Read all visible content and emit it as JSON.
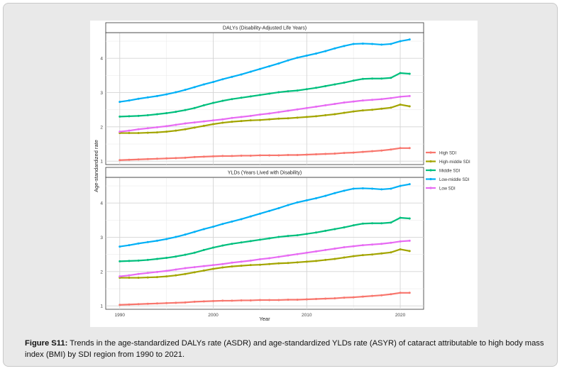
{
  "caption": {
    "label": "Figure S11:",
    "text": " Trends in the age-standardized DALYs rate (ASDR) and age-standardized YLDs rate (ASYR) of cataract attributable to high body mass index (BMI) by SDI region from 1990 to 2021."
  },
  "chart_data": {
    "type": "line",
    "xlabel": "Year",
    "ylabel": "Age-standardized rate",
    "xlim": [
      1988.5,
      2022.5
    ],
    "x_ticks": [
      1990,
      2000,
      2010,
      2020
    ],
    "y_ticks": [
      1,
      2,
      3,
      4
    ],
    "legend_position": "right",
    "series_meta": [
      {
        "name": "High SDI",
        "color": "#f8766d"
      },
      {
        "name": "High-middle SDI",
        "color": "#a3a500"
      },
      {
        "name": "Middle SDI",
        "color": "#00bf7d"
      },
      {
        "name": "Low-middle SDI",
        "color": "#00b0f6"
      },
      {
        "name": "Low SDI",
        "color": "#e76bf3"
      }
    ],
    "panels": [
      {
        "title": "DALYs (Disability-Adjusted Life Years)",
        "ylim": [
          0.9,
          4.75
        ],
        "x": [
          1990,
          1991,
          1992,
          1993,
          1994,
          1995,
          1996,
          1997,
          1998,
          1999,
          2000,
          2001,
          2002,
          2003,
          2004,
          2005,
          2006,
          2007,
          2008,
          2009,
          2010,
          2011,
          2012,
          2013,
          2014,
          2015,
          2016,
          2017,
          2018,
          2019,
          2020,
          2021
        ],
        "series": [
          {
            "name": "High SDI",
            "values": [
              1.03,
              1.04,
              1.05,
              1.06,
              1.07,
              1.08,
              1.09,
              1.1,
              1.12,
              1.13,
              1.14,
              1.15,
              1.15,
              1.16,
              1.16,
              1.17,
              1.17,
              1.17,
              1.18,
              1.18,
              1.19,
              1.2,
              1.21,
              1.22,
              1.24,
              1.25,
              1.27,
              1.29,
              1.31,
              1.34,
              1.38,
              1.38
            ]
          },
          {
            "name": "High-middle SDI",
            "values": [
              1.82,
              1.82,
              1.82,
              1.83,
              1.84,
              1.86,
              1.89,
              1.93,
              1.98,
              2.03,
              2.08,
              2.12,
              2.15,
              2.17,
              2.19,
              2.2,
              2.22,
              2.24,
              2.25,
              2.27,
              2.29,
              2.31,
              2.34,
              2.37,
              2.41,
              2.45,
              2.48,
              2.5,
              2.53,
              2.56,
              2.65,
              2.6
            ]
          },
          {
            "name": "Middle SDI",
            "values": [
              2.3,
              2.31,
              2.32,
              2.34,
              2.37,
              2.4,
              2.44,
              2.49,
              2.55,
              2.63,
              2.7,
              2.76,
              2.81,
              2.85,
              2.89,
              2.93,
              2.97,
              3.01,
              3.04,
              3.06,
              3.1,
              3.14,
              3.19,
              3.24,
              3.29,
              3.35,
              3.4,
              3.41,
              3.41,
              3.43,
              3.57,
              3.55
            ]
          },
          {
            "name": "Low-middle SDI",
            "values": [
              2.73,
              2.77,
              2.82,
              2.86,
              2.9,
              2.95,
              3.01,
              3.08,
              3.16,
              3.24,
              3.31,
              3.39,
              3.46,
              3.53,
              3.61,
              3.69,
              3.77,
              3.85,
              3.94,
              4.02,
              4.08,
              4.14,
              4.21,
              4.29,
              4.36,
              4.42,
              4.43,
              4.42,
              4.4,
              4.42,
              4.5,
              4.55
            ]
          },
          {
            "name": "Low SDI",
            "values": [
              1.86,
              1.89,
              1.93,
              1.96,
              1.99,
              2.02,
              2.06,
              2.1,
              2.13,
              2.16,
              2.19,
              2.22,
              2.26,
              2.29,
              2.32,
              2.36,
              2.39,
              2.43,
              2.47,
              2.51,
              2.55,
              2.59,
              2.63,
              2.67,
              2.71,
              2.74,
              2.77,
              2.79,
              2.81,
              2.84,
              2.88,
              2.9
            ]
          }
        ]
      },
      {
        "title": "YLDs (Years Lived with Disability)",
        "ylim": [
          0.9,
          4.75
        ],
        "x": [
          1990,
          1991,
          1992,
          1993,
          1994,
          1995,
          1996,
          1997,
          1998,
          1999,
          2000,
          2001,
          2002,
          2003,
          2004,
          2005,
          2006,
          2007,
          2008,
          2009,
          2010,
          2011,
          2012,
          2013,
          2014,
          2015,
          2016,
          2017,
          2018,
          2019,
          2020,
          2021
        ],
        "series": [
          {
            "name": "High SDI",
            "values": [
              1.03,
              1.04,
              1.05,
              1.06,
              1.07,
              1.08,
              1.09,
              1.1,
              1.12,
              1.13,
              1.14,
              1.15,
              1.15,
              1.16,
              1.16,
              1.17,
              1.17,
              1.17,
              1.18,
              1.18,
              1.19,
              1.2,
              1.21,
              1.22,
              1.24,
              1.25,
              1.27,
              1.29,
              1.31,
              1.34,
              1.38,
              1.38
            ]
          },
          {
            "name": "High-middle SDI",
            "values": [
              1.82,
              1.82,
              1.82,
              1.83,
              1.84,
              1.86,
              1.89,
              1.93,
              1.98,
              2.03,
              2.08,
              2.12,
              2.15,
              2.17,
              2.19,
              2.2,
              2.22,
              2.24,
              2.25,
              2.27,
              2.29,
              2.31,
              2.34,
              2.37,
              2.41,
              2.45,
              2.48,
              2.5,
              2.53,
              2.56,
              2.65,
              2.6
            ]
          },
          {
            "name": "Middle SDI",
            "values": [
              2.3,
              2.31,
              2.32,
              2.34,
              2.37,
              2.4,
              2.44,
              2.49,
              2.55,
              2.63,
              2.7,
              2.76,
              2.81,
              2.85,
              2.89,
              2.93,
              2.97,
              3.01,
              3.04,
              3.06,
              3.1,
              3.14,
              3.19,
              3.24,
              3.29,
              3.35,
              3.4,
              3.41,
              3.41,
              3.43,
              3.57,
              3.55
            ]
          },
          {
            "name": "Low-middle SDI",
            "values": [
              2.73,
              2.77,
              2.82,
              2.86,
              2.9,
              2.95,
              3.01,
              3.08,
              3.16,
              3.24,
              3.31,
              3.39,
              3.46,
              3.53,
              3.61,
              3.69,
              3.77,
              3.85,
              3.94,
              4.02,
              4.08,
              4.14,
              4.21,
              4.29,
              4.36,
              4.42,
              4.43,
              4.42,
              4.4,
              4.42,
              4.5,
              4.55
            ]
          },
          {
            "name": "Low SDI",
            "values": [
              1.86,
              1.89,
              1.93,
              1.96,
              1.99,
              2.02,
              2.06,
              2.1,
              2.13,
              2.16,
              2.19,
              2.22,
              2.26,
              2.29,
              2.32,
              2.36,
              2.39,
              2.43,
              2.47,
              2.51,
              2.55,
              2.59,
              2.63,
              2.67,
              2.71,
              2.74,
              2.77,
              2.79,
              2.81,
              2.84,
              2.88,
              2.9
            ]
          }
        ]
      }
    ]
  }
}
